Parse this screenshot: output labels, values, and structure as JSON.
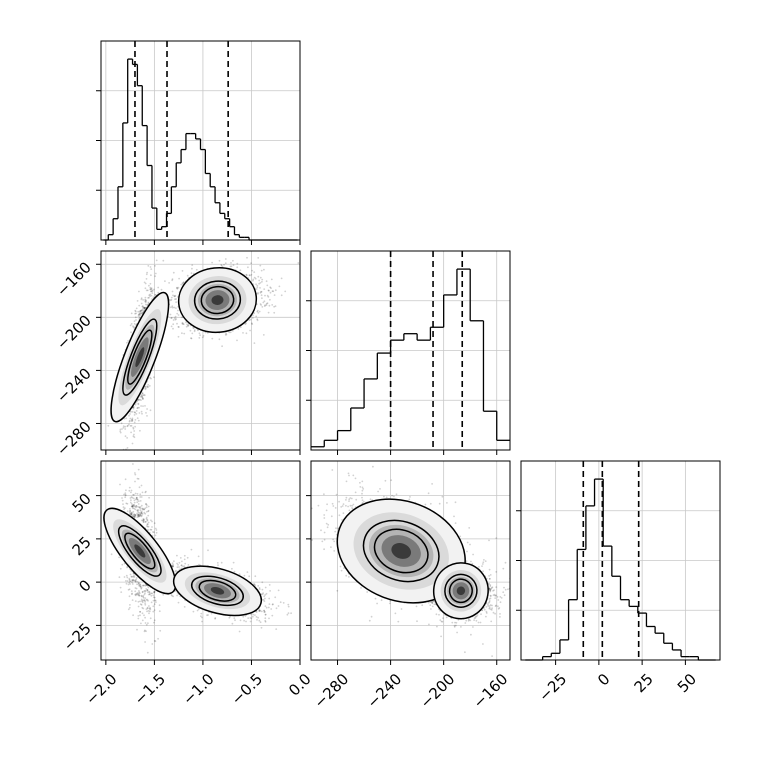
{
  "chart_data": [
    {
      "type": "histogram",
      "panel": "hist-param-1",
      "xlim": [
        -2.05,
        0.0
      ],
      "bin_centers": [
        -2.0,
        -1.95,
        -1.9,
        -1.85,
        -1.8,
        -1.75,
        -1.7,
        -1.65,
        -1.6,
        -1.55,
        -1.5,
        -1.45,
        -1.4,
        -1.35,
        -1.3,
        -1.25,
        -1.2,
        -1.15,
        -1.1,
        -1.05,
        -1.0,
        -0.95,
        -0.9,
        -0.85,
        -0.8,
        -0.75,
        -0.7,
        -0.65,
        -0.6,
        -0.55,
        -0.5,
        -0.45,
        -0.4,
        -0.35,
        -0.3,
        -0.25,
        -0.2,
        -0.15,
        -0.1,
        -0.05
      ],
      "counts": [
        0,
        2,
        8,
        20,
        44,
        68,
        66,
        58,
        43,
        28,
        12,
        4,
        5,
        10,
        20,
        29,
        34,
        40,
        40,
        38,
        34,
        25,
        20,
        14,
        10,
        8,
        5,
        2,
        1,
        1,
        0,
        0,
        0,
        0,
        0,
        0,
        0,
        0,
        0,
        0
      ],
      "quantile_lines": [
        -1.7,
        -1.37,
        -0.74
      ],
      "grid": true
    },
    {
      "type": "histogram",
      "panel": "hist-param-2",
      "xlim": [
        -300,
        -150
      ],
      "bin_centers": [
        -295,
        -285,
        -275,
        -265,
        -255,
        -245,
        -235,
        -225,
        -215,
        -205,
        -195,
        -185,
        -175,
        -165,
        -155
      ],
      "counts": [
        1,
        3,
        6,
        13,
        22,
        30,
        34,
        36,
        34,
        38,
        48,
        56,
        40,
        12,
        3
      ],
      "quantile_lines": [
        -240,
        -208,
        -186
      ],
      "grid": true
    },
    {
      "type": "histogram",
      "panel": "hist-param-3",
      "xlim": [
        -45,
        70
      ],
      "bin_centers": [
        -40,
        -35,
        -30,
        -25,
        -20,
        -15,
        -10,
        -5,
        0,
        5,
        10,
        15,
        20,
        25,
        30,
        35,
        40,
        45,
        50,
        55,
        60,
        65
      ],
      "counts": [
        0,
        0,
        1,
        2,
        6,
        18,
        33,
        46,
        54,
        34,
        25,
        18,
        16,
        14,
        10,
        8,
        5,
        3,
        1,
        1,
        0,
        0
      ],
      "quantile_lines": [
        -9,
        2,
        23
      ],
      "grid": true
    },
    {
      "type": "scatter",
      "panel": "joint-param-1-vs-param-2",
      "xlim": [
        -2.05,
        0.0
      ],
      "ylim": [
        -300,
        -150
      ],
      "clusters": [
        {
          "center": [
            -1.65,
            -230
          ],
          "spread": [
            0.07,
            22
          ],
          "corr": 0.6,
          "n": 1300
        },
        {
          "center": [
            -0.85,
            -187
          ],
          "spread": [
            0.2,
            9
          ],
          "corr": 0.15,
          "n": 1900
        }
      ],
      "contour_levels": [
        1.0,
        1.7,
        2.4
      ],
      "grid": true
    },
    {
      "type": "scatter",
      "panel": "joint-param-1-vs-param-3",
      "xlim": [
        -2.05,
        0.0
      ],
      "ylim": [
        -45,
        70
      ],
      "clusters": [
        {
          "center": [
            -1.65,
            18
          ],
          "spread": [
            0.07,
            14
          ],
          "corr": -0.35,
          "n": 1300
        },
        {
          "center": [
            -0.85,
            -5
          ],
          "spread": [
            0.2,
            6
          ],
          "corr": -0.55,
          "n": 1900
        }
      ],
      "contour_levels": [
        1.0,
        1.7,
        2.4
      ],
      "grid": true
    },
    {
      "type": "scatter",
      "panel": "joint-param-2-vs-param-3",
      "xlim": [
        -300,
        -150
      ],
      "ylim": [
        -45,
        70
      ],
      "clusters": [
        {
          "center": [
            -232,
            18
          ],
          "spread": [
            22,
            14
          ],
          "corr": -0.45,
          "n": 1300
        },
        {
          "center": [
            -187,
            -5
          ],
          "spread": [
            10,
            6
          ],
          "corr": -0.2,
          "n": 1900
        }
      ],
      "contour_levels": [
        1.0,
        1.7,
        2.4
      ],
      "grid": true
    }
  ],
  "axes": {
    "param1_ticks": [
      "−2.0",
      "−1.5",
      "−1.0",
      "−0.5",
      "0.0"
    ],
    "param1_tick_values": [
      -2.0,
      -1.5,
      -1.0,
      -0.5,
      0.0
    ],
    "param2_ticks": [
      "−280",
      "−240",
      "−200",
      "−160"
    ],
    "param2_tick_values": [
      -280,
      -240,
      -200,
      -160
    ],
    "param3_ticks": [
      "−25",
      "0",
      "25",
      "50"
    ],
    "param3_tick_values": [
      -25,
      0,
      25,
      50
    ]
  }
}
